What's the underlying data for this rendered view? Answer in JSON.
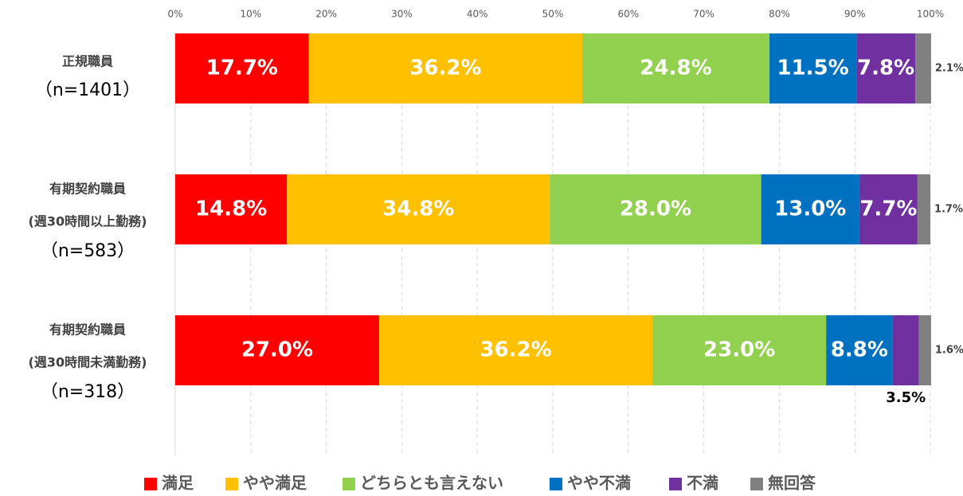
{
  "chart_data": {
    "type": "stacked-bar-horizontal",
    "categories": [
      [
        "正規職員",
        "（n=1401）"
      ],
      [
        "有期契約職員",
        "(週30時間以上勤務)",
        "（n=583）"
      ],
      [
        "有期契約職員",
        "(週30時間未満勤務)",
        "（n=318）"
      ]
    ],
    "series": [
      {
        "name": "満足",
        "color": "#ff0000",
        "values": [
          17.7,
          14.8,
          27.0
        ],
        "value_labels": [
          "17.7%",
          "14.8%",
          "27.0%"
        ]
      },
      {
        "name": "やや満足",
        "color": "#ffc000",
        "values": [
          36.2,
          34.8,
          36.2
        ],
        "value_labels": [
          "36.2%",
          "34.8%",
          "36.2%"
        ]
      },
      {
        "name": "どちらとも言えない",
        "color": "#92d050",
        "values": [
          24.8,
          28.0,
          23.0
        ],
        "value_labels": [
          "24.8%",
          "28.0%",
          "23.0%"
        ]
      },
      {
        "name": "やや不満",
        "color": "#0070c0",
        "values": [
          11.5,
          13.0,
          8.8
        ],
        "value_labels": [
          "11.5%",
          "13.0%",
          "8.8%"
        ]
      },
      {
        "name": "不満",
        "color": "#7030a0",
        "values": [
          7.8,
          7.7,
          3.5
        ],
        "value_labels": [
          "7.8%",
          "7.7%",
          "3.5%"
        ]
      },
      {
        "name": "無回答",
        "color": "#808080",
        "values": [
          2.1,
          1.7,
          1.6
        ],
        "value_labels": [
          "2.1%",
          "1.7%",
          "1.6%"
        ]
      }
    ],
    "xlim": [
      0,
      100
    ],
    "xticks": [
      {
        "value": 0,
        "label": "0%"
      },
      {
        "value": 10,
        "label": "10%"
      },
      {
        "value": 20,
        "label": "20%"
      },
      {
        "value": 30,
        "label": "30%"
      },
      {
        "value": 40,
        "label": "40%"
      },
      {
        "value": 50,
        "label": "50%"
      },
      {
        "value": 60,
        "label": "60%"
      },
      {
        "value": 70,
        "label": "70%"
      },
      {
        "value": 80,
        "label": "80%"
      },
      {
        "value": 90,
        "label": "90%"
      },
      {
        "value": 100,
        "label": "100%"
      }
    ],
    "grid": true,
    "legend": "bottom"
  }
}
